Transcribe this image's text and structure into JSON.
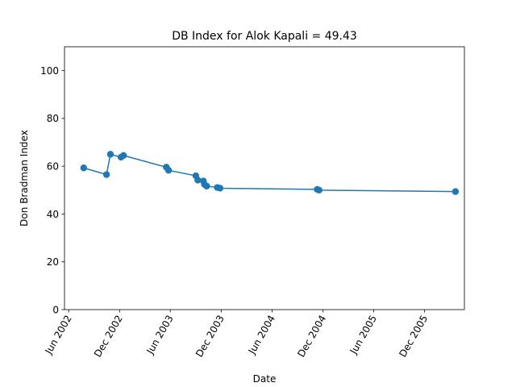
{
  "chart_data": {
    "type": "line",
    "title": "DB Index for Alok Kapali = 49.43",
    "xlabel": "Date",
    "ylabel": "Don Bradman Index",
    "ylim": [
      0,
      110
    ],
    "xlim": [
      "2002-05-17",
      "2006-04-23"
    ],
    "y_ticks": [
      0,
      20,
      40,
      60,
      80,
      100
    ],
    "x_ticks": [
      {
        "date": "2002-06-01",
        "label": "Jun 2002"
      },
      {
        "date": "2002-12-01",
        "label": "Dec 2002"
      },
      {
        "date": "2003-06-01",
        "label": "Jun 2003"
      },
      {
        "date": "2003-12-01",
        "label": "Dec 2003"
      },
      {
        "date": "2004-06-01",
        "label": "Jun 2004"
      },
      {
        "date": "2004-12-01",
        "label": "Dec 2004"
      },
      {
        "date": "2005-06-01",
        "label": "Jun 2005"
      },
      {
        "date": "2005-12-01",
        "label": "Dec 2005"
      }
    ],
    "grid": false,
    "color": "#1f77b4",
    "points": [
      {
        "x": "2002-07-25",
        "y": 59.3
      },
      {
        "x": "2002-10-15",
        "y": 56.5
      },
      {
        "x": "2002-10-29",
        "y": 65.0
      },
      {
        "x": "2002-12-06",
        "y": 63.8
      },
      {
        "x": "2002-12-15",
        "y": 64.5
      },
      {
        "x": "2003-05-18",
        "y": 59.6
      },
      {
        "x": "2003-05-26",
        "y": 58.3
      },
      {
        "x": "2003-09-01",
        "y": 56.0
      },
      {
        "x": "2003-09-08",
        "y": 54.2
      },
      {
        "x": "2003-09-28",
        "y": 53.8
      },
      {
        "x": "2003-10-02",
        "y": 52.4
      },
      {
        "x": "2003-10-10",
        "y": 51.7
      },
      {
        "x": "2003-11-17",
        "y": 51.1
      },
      {
        "x": "2003-11-27",
        "y": 50.8
      },
      {
        "x": "2004-11-10",
        "y": 50.3
      },
      {
        "x": "2004-11-17",
        "y": 50.0
      },
      {
        "x": "2006-03-22",
        "y": 49.4
      }
    ]
  }
}
